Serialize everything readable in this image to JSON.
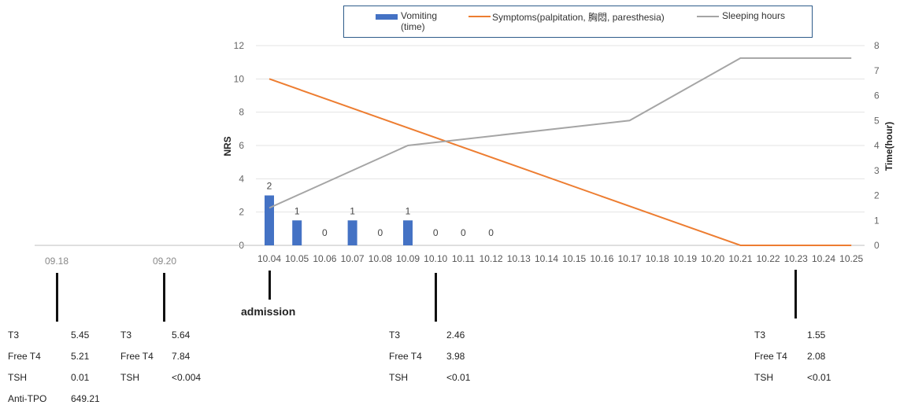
{
  "chart_data": {
    "type": "bar+line",
    "x": [
      "10.04",
      "10.05",
      "10.06",
      "10.07",
      "10.08",
      "10.09",
      "10.10",
      "10.11",
      "10.12",
      "10.13",
      "10.14",
      "10.15",
      "10.16",
      "10.17",
      "10.18",
      "10.19",
      "10.20",
      "10.21",
      "10.22",
      "10.23",
      "10.24",
      "10.25"
    ],
    "left_axis": {
      "label": "NRS",
      "ticks": [
        "0",
        "2",
        "4",
        "6",
        "8",
        "10",
        "12"
      ],
      "range": [
        0,
        12
      ]
    },
    "right_axis": {
      "label": "Time(hour)",
      "ticks": [
        "0",
        "1",
        "2",
        "3",
        "4",
        "5",
        "6",
        "7",
        "8"
      ],
      "range": [
        0,
        8
      ]
    },
    "series": [
      {
        "name": "Vomiting (time)",
        "legend_line1": "Vomiting",
        "legend_line2": "(time)",
        "type": "bar",
        "axis": "right",
        "color": "#4472c4",
        "x": [
          "10.04",
          "10.05",
          "10.06",
          "10.07",
          "10.08",
          "10.09",
          "10.10",
          "10.11",
          "10.12"
        ],
        "values": [
          2,
          1,
          0,
          1,
          0,
          1,
          0,
          0,
          0
        ],
        "labels": [
          "2",
          "1",
          "0",
          "1",
          "0",
          "1",
          "0",
          "0",
          "0"
        ]
      },
      {
        "name": "Symptoms(palpitation, 胸悶, paresthesia)",
        "type": "line",
        "axis": "left",
        "color": "#ed7d31",
        "points": [
          {
            "x": "10.04",
            "y": 10
          },
          {
            "x": "10.21",
            "y": 0
          },
          {
            "x": "10.25",
            "y": 0
          }
        ]
      },
      {
        "name": "Sleeping hours",
        "type": "line",
        "axis": "right",
        "color": "#a5a5a5",
        "points": [
          {
            "x": "10.04",
            "y": 1.5
          },
          {
            "x": "10.09",
            "y": 4
          },
          {
            "x": "10.17",
            "y": 5
          },
          {
            "x": "10.21",
            "y": 7.5
          },
          {
            "x": "10.25",
            "y": 7.5
          }
        ]
      }
    ],
    "pre_admission_dates": [
      "09.18",
      "09.20"
    ],
    "legend_position": "top",
    "grid": "horizontal"
  },
  "admission_label": "admission",
  "lab_panels": [
    {
      "date": "09.18",
      "rows": [
        [
          "T3",
          "5.45"
        ],
        [
          "Free T4",
          "5.21"
        ],
        [
          "TSH",
          "0.01"
        ],
        [
          "Anti-TPO",
          "649.21"
        ]
      ]
    },
    {
      "date": "09.20",
      "rows": [
        [
          "T3",
          "5.64"
        ],
        [
          "Free T4",
          "7.84"
        ],
        [
          "TSH",
          "<0.004"
        ]
      ]
    },
    {
      "date": "10.10",
      "rows": [
        [
          "T3",
          "2.46"
        ],
        [
          "Free T4",
          "3.98"
        ],
        [
          "TSH",
          "<0.01"
        ]
      ]
    },
    {
      "date": "10.23",
      "rows": [
        [
          "T3",
          "1.55"
        ],
        [
          "Free T4",
          "2.08"
        ],
        [
          "TSH",
          "<0.01"
        ]
      ]
    }
  ]
}
